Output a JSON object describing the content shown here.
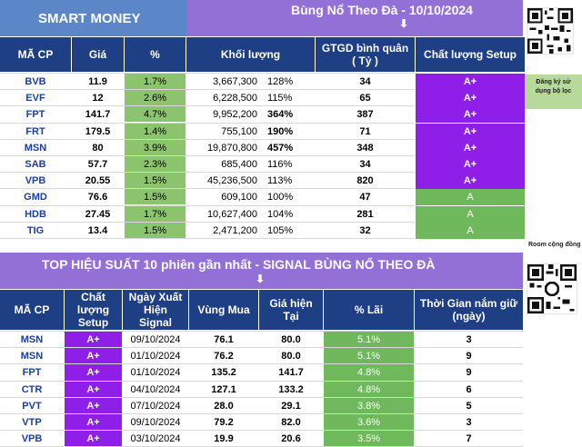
{
  "header": {
    "left_title": "SMART MONEY",
    "right_title": "Bùng Nổ Theo Đà - 10/10/2024",
    "arrow": "⬇"
  },
  "table1": {
    "columns": [
      "MÃ CP",
      "Giá",
      "%",
      "Khối lượng",
      "GTGD bình quân",
      "( Tỷ )",
      "Chất lượng Setup"
    ],
    "rows": [
      {
        "code": "BVB",
        "price": "11.9",
        "pct": "1.7%",
        "vol": "3,667,300",
        "vol_pct": "128%",
        "gtgd": "34",
        "grade": "A+"
      },
      {
        "code": "EVF",
        "price": "12",
        "pct": "2.6%",
        "vol": "6,228,500",
        "vol_pct": "115%",
        "gtgd": "65",
        "grade": "A+"
      },
      {
        "code": "FPT",
        "price": "141.7",
        "pct": "4.7%",
        "vol": "9,952,200",
        "vol_pct": "364%",
        "gtgd": "387",
        "grade": "A+"
      },
      {
        "code": "FRT",
        "price": "179.5",
        "pct": "1.4%",
        "vol": "755,100",
        "vol_pct": "190%",
        "gtgd": "71",
        "grade": "A+"
      },
      {
        "code": "MSN",
        "price": "80",
        "pct": "3.9%",
        "vol": "19,870,800",
        "vol_pct": "457%",
        "gtgd": "348",
        "grade": "A+"
      },
      {
        "code": "SAB",
        "price": "57.7",
        "pct": "2.3%",
        "vol": "685,400",
        "vol_pct": "116%",
        "gtgd": "34",
        "grade": "A+"
      },
      {
        "code": "VPB",
        "price": "20.55",
        "pct": "1.5%",
        "vol": "45,236,500",
        "vol_pct": "113%",
        "gtgd": "820",
        "grade": "A+"
      },
      {
        "code": "GMD",
        "price": "76.6",
        "pct": "1.5%",
        "vol": "609,100",
        "vol_pct": "100%",
        "gtgd": "47",
        "grade": "A"
      },
      {
        "code": "HDB",
        "price": "27.45",
        "pct": "1.7%",
        "vol": "10,627,400",
        "vol_pct": "104%",
        "gtgd": "281",
        "grade": "A"
      },
      {
        "code": "TIG",
        "price": "13.4",
        "pct": "1.5%",
        "vol": "2,471,200",
        "vol_pct": "105%",
        "gtgd": "32",
        "grade": "A"
      }
    ]
  },
  "side": {
    "signup_line1": "Đăng ký sử",
    "signup_line2": "dụng bộ lọc",
    "room_note": "Room cộng đồng"
  },
  "section2": {
    "title": "TOP HIỆU SUẤT 10 phiên gần nhất  - SIGNAL BÙNG NỔ THEO ĐÀ",
    "arrow": "⬇"
  },
  "table2": {
    "columns": {
      "code": "MÃ CP",
      "quality_1": "Chất",
      "quality_2": "lượng",
      "quality_3": "Setup",
      "date_1": "Ngày Xuất",
      "date_2": "Hiện",
      "date_3": "Signal",
      "buy": "Vùng Mua",
      "cur_1": "Giá hiện",
      "cur_2": "Tại",
      "gain": "% Lãi",
      "hold_1": "Thời Gian nắm giữ",
      "hold_2": "(ngày)"
    },
    "rows": [
      {
        "code": "MSN",
        "grade": "A+",
        "date": "09/10/2024",
        "buy": "76.1",
        "cur": "80.0",
        "gain": "5.1%",
        "days": "3"
      },
      {
        "code": "MSN",
        "grade": "A+",
        "date": "01/10/2024",
        "buy": "76.2",
        "cur": "80.0",
        "gain": "5.1%",
        "days": "9"
      },
      {
        "code": "FPT",
        "grade": "A+",
        "date": "01/10/2024",
        "buy": "135.2",
        "cur": "141.7",
        "gain": "4.8%",
        "days": "9"
      },
      {
        "code": "CTR",
        "grade": "A+",
        "date": "04/10/2024",
        "buy": "127.1",
        "cur": "133.2",
        "gain": "4.8%",
        "days": "6"
      },
      {
        "code": "PVT",
        "grade": "A+",
        "date": "07/10/2024",
        "buy": "28.0",
        "cur": "29.1",
        "gain": "3.8%",
        "days": "5"
      },
      {
        "code": "VTP",
        "grade": "A+",
        "date": "09/10/2024",
        "buy": "79.2",
        "cur": "82.0",
        "gain": "3.6%",
        "days": "3"
      },
      {
        "code": "VPB",
        "grade": "A+",
        "date": "03/10/2024",
        "buy": "19.9",
        "cur": "20.6",
        "gain": "3.5%",
        "days": "7"
      }
    ]
  },
  "colors": {
    "header_blue": "#1f3f85",
    "title_purple": "#9370d6",
    "grade_purple": "#8e1ee8",
    "grade_green": "#6fb85c",
    "pct_green": "#8cc46e"
  }
}
